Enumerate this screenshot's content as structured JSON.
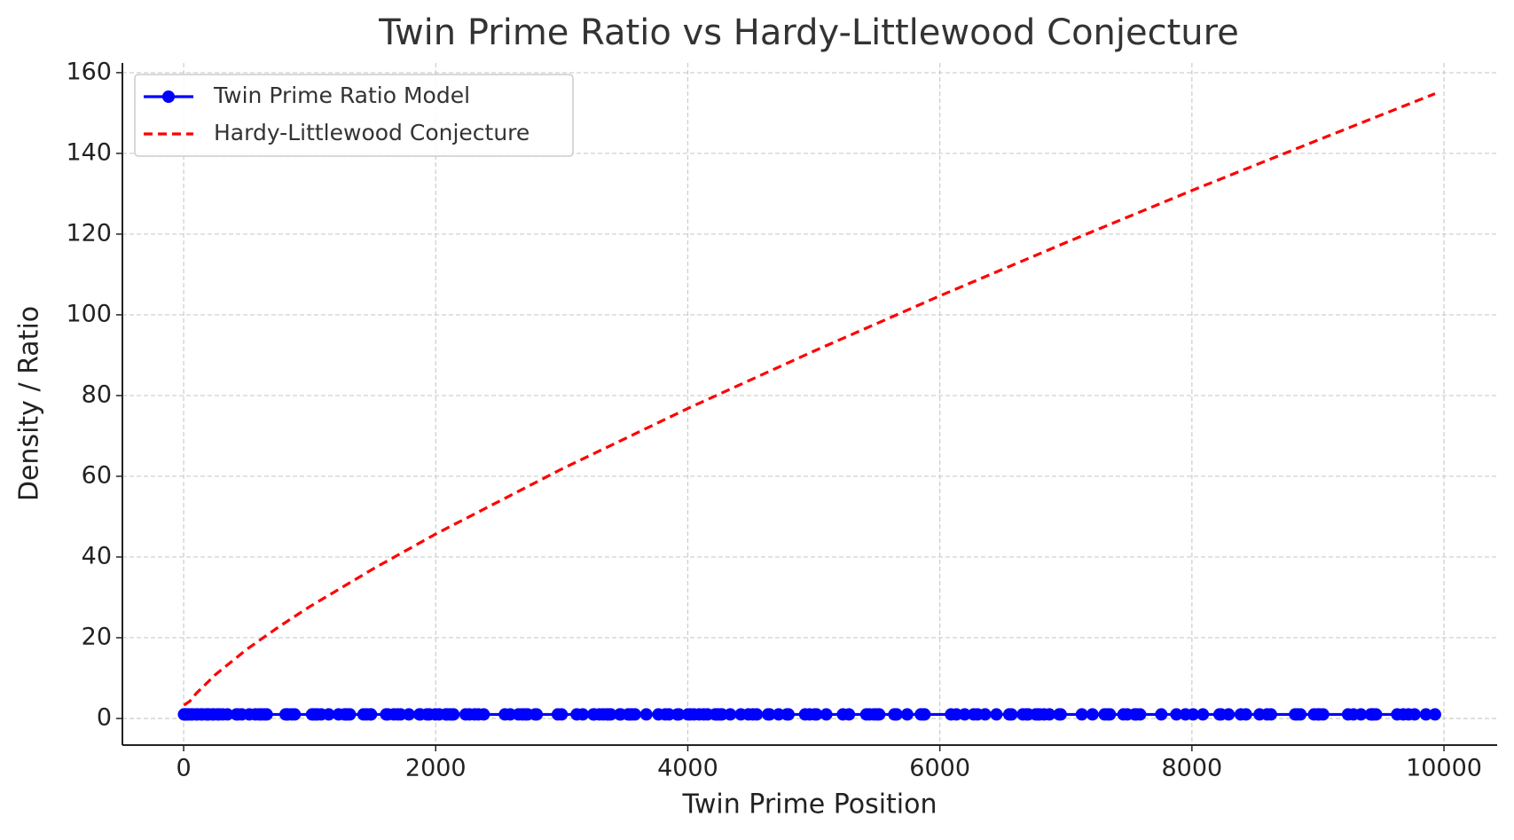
{
  "chart_data": {
    "type": "line",
    "title": "Twin Prime Ratio vs Hardy-Littlewood Conjecture",
    "xlabel": "Twin Prime Position",
    "ylabel": "Density / Ratio",
    "xlim": [
      -486,
      10422
    ],
    "ylim": [
      -6.6,
      162.4
    ],
    "xticks": [
      0,
      2000,
      4000,
      6000,
      8000,
      10000
    ],
    "yticks": [
      0,
      20,
      40,
      60,
      80,
      100,
      120,
      140,
      160
    ],
    "grid": true,
    "legend": "upper left",
    "series": [
      {
        "name": "Twin Prime Ratio Model",
        "color": "#0000ff",
        "linestyle": "solid",
        "marker": "o",
        "x": [
          3,
          5,
          11,
          17,
          29,
          41,
          59,
          71,
          101,
          107,
          137,
          149,
          179,
          191,
          197,
          227,
          239,
          269,
          281,
          311,
          347,
          419,
          431,
          461,
          521,
          569,
          599,
          617,
          641,
          659,
          809,
          821,
          827,
          857,
          881,
          1019,
          1031,
          1049,
          1061,
          1091,
          1151,
          1229,
          1277,
          1289,
          1301,
          1319,
          1427,
          1451,
          1481,
          1487,
          1607,
          1619,
          1667,
          1697,
          1721,
          1787,
          1871,
          1877,
          1931,
          1949,
          1997,
          2027,
          2081,
          2087,
          2111,
          2129,
          2141,
          2237,
          2267,
          2309,
          2339,
          2381,
          2549,
          2591,
          2657,
          2687,
          2711,
          2729,
          2789,
          2801,
          2969,
          2999,
          3119,
          3167,
          3251,
          3257,
          3299,
          3329,
          3359,
          3371,
          3389,
          3461,
          3467,
          3527,
          3539,
          3557,
          3581,
          3671,
          3767,
          3821,
          3851,
          3917,
          3929,
          4001,
          4019,
          4049,
          4091,
          4127,
          4157,
          4217,
          4229,
          4241,
          4259,
          4271,
          4337,
          4421,
          4481,
          4517,
          4547,
          4637,
          4649,
          4721,
          4787,
          4799,
          4931,
          4967,
          5009,
          5021,
          5099,
          5231,
          5279,
          5417,
          5441,
          5477,
          5501,
          5519,
          5639,
          5651,
          5657,
          5741,
          5849,
          5867,
          5879,
          6089,
          6131,
          6197,
          6269,
          6299,
          6359,
          6449,
          6551,
          6569,
          6659,
          6689,
          6701,
          6761,
          6779,
          6791,
          6827,
          6869,
          6947,
          6959,
          7127,
          7211,
          7307,
          7331,
          7349,
          7457,
          7487,
          7547,
          7559,
          7589,
          7757,
          7877,
          7949,
          8009,
          8087,
          8219,
          8231,
          8291,
          8387,
          8429,
          8537,
          8597,
          8627,
          8819,
          8837,
          8861,
          8969,
          8999,
          9011,
          9041,
          9239,
          9281,
          9341,
          9419,
          9431,
          9437,
          9461,
          9629,
          9677,
          9719,
          9767,
          9857,
          9929
        ],
        "values": [
          1,
          1,
          1,
          1,
          1,
          1,
          1,
          1,
          1,
          1,
          1,
          1,
          1,
          1,
          1,
          1,
          1,
          1,
          1,
          1,
          1,
          1,
          1,
          1,
          1,
          1,
          1,
          1,
          1,
          1,
          1,
          1,
          1,
          1,
          1,
          1,
          1,
          1,
          1,
          1,
          1,
          1,
          1,
          1,
          1,
          1,
          1,
          1,
          1,
          1,
          1,
          1,
          1,
          1,
          1,
          1,
          1,
          1,
          1,
          1,
          1,
          1,
          1,
          1,
          1,
          1,
          1,
          1,
          1,
          1,
          1,
          1,
          1,
          1,
          1,
          1,
          1,
          1,
          1,
          1,
          1,
          1,
          1,
          1,
          1,
          1,
          1,
          1,
          1,
          1,
          1,
          1,
          1,
          1,
          1,
          1,
          1,
          1,
          1,
          1,
          1,
          1,
          1,
          1,
          1,
          1,
          1,
          1,
          1,
          1,
          1,
          1,
          1,
          1,
          1,
          1,
          1,
          1,
          1,
          1,
          1,
          1,
          1,
          1,
          1,
          1,
          1,
          1,
          1,
          1,
          1,
          1,
          1,
          1,
          1,
          1,
          1,
          1,
          1,
          1,
          1,
          1,
          1,
          1,
          1,
          1,
          1,
          1,
          1,
          1,
          1,
          1,
          1,
          1,
          1,
          1,
          1,
          1,
          1,
          1,
          1,
          1,
          1,
          1,
          1,
          1,
          1,
          1,
          1,
          1,
          1,
          1,
          1,
          1,
          1,
          1,
          1,
          1,
          1,
          1,
          1,
          1,
          1,
          1,
          1,
          1,
          1,
          1,
          1,
          1,
          1,
          1,
          1,
          1,
          1,
          1,
          1,
          1,
          1,
          1,
          1,
          1,
          1,
          1,
          1
        ]
      },
      {
        "name": "Hardy-Littlewood Conjecture",
        "color": "#ff0000",
        "linestyle": "dashed",
        "x": [
          3,
          50,
          100,
          250,
          500,
          750,
          1000,
          1500,
          2000,
          3000,
          4000,
          5000,
          6000,
          7000,
          8000,
          9000,
          9929
        ],
        "values": [
          3.3,
          4.3,
          6.2,
          10.8,
          17.1,
          22.6,
          27.7,
          37.0,
          45.7,
          61.8,
          76.8,
          91.0,
          104.7,
          117.9,
          130.8,
          143.3,
          154.8
        ]
      }
    ]
  }
}
